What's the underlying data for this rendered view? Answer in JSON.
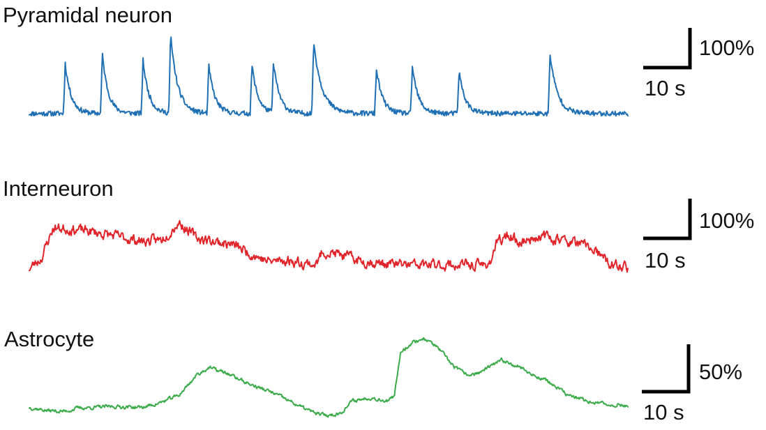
{
  "chart_data": [
    {
      "type": "line",
      "title": "Pyramidal neuron",
      "color": "#1f6fb5",
      "scale_bar": {
        "y_label": "100%",
        "x_label": "10 s",
        "y_value": 100,
        "x_value": 10
      },
      "x_range": [
        0,
        100
      ],
      "y_range": [
        -8,
        135
      ],
      "baseline": 0,
      "noise": 4,
      "seed": 11,
      "events": [
        {
          "t": 6.0,
          "amp": 80,
          "rise": 0.3,
          "decay": 1.0
        },
        {
          "t": 12.2,
          "amp": 95,
          "rise": 0.3,
          "decay": 1.0
        },
        {
          "t": 19.0,
          "amp": 85,
          "rise": 0.3,
          "decay": 1.0
        },
        {
          "t": 23.6,
          "amp": 125,
          "rise": 0.3,
          "decay": 1.2
        },
        {
          "t": 30.0,
          "amp": 75,
          "rise": 0.3,
          "decay": 1.0
        },
        {
          "t": 37.2,
          "amp": 78,
          "rise": 0.3,
          "decay": 1.0
        },
        {
          "t": 40.8,
          "amp": 80,
          "rise": 0.3,
          "decay": 1.0
        },
        {
          "t": 47.5,
          "amp": 115,
          "rise": 0.3,
          "decay": 1.4
        },
        {
          "t": 58.0,
          "amp": 72,
          "rise": 0.3,
          "decay": 1.0
        },
        {
          "t": 64.0,
          "amp": 75,
          "rise": 0.3,
          "decay": 1.0
        },
        {
          "t": 71.8,
          "amp": 68,
          "rise": 0.3,
          "decay": 1.0
        },
        {
          "t": 87.0,
          "amp": 95,
          "rise": 0.3,
          "decay": 1.2
        }
      ]
    },
    {
      "type": "line",
      "title": "Interneuron",
      "color": "#e0242a",
      "scale_bar": {
        "y_label": "100%",
        "x_label": "10 s",
        "y_value": 100,
        "x_value": 10
      },
      "x_range": [
        0,
        100
      ],
      "y_range": [
        -5,
        100
      ],
      "noise": 6,
      "seed": 23,
      "points": [
        [
          0,
          0
        ],
        [
          2,
          15
        ],
        [
          4,
          60
        ],
        [
          7,
          58
        ],
        [
          10,
          55
        ],
        [
          13,
          50
        ],
        [
          16,
          45
        ],
        [
          19,
          40
        ],
        [
          22,
          42
        ],
        [
          25,
          68
        ],
        [
          28,
          45
        ],
        [
          31,
          40
        ],
        [
          34,
          35
        ],
        [
          37,
          22
        ],
        [
          40,
          10
        ],
        [
          43,
          12
        ],
        [
          46,
          8
        ],
        [
          48,
          6
        ],
        [
          49,
          25
        ],
        [
          52,
          20
        ],
        [
          55,
          12
        ],
        [
          58,
          8
        ],
        [
          61,
          6
        ],
        [
          64,
          5
        ],
        [
          67,
          5
        ],
        [
          70,
          5
        ],
        [
          73,
          5
        ],
        [
          76,
          5
        ],
        [
          77,
          10
        ],
        [
          78,
          35
        ],
        [
          80,
          50
        ],
        [
          82,
          38
        ],
        [
          85,
          48
        ],
        [
          88,
          44
        ],
        [
          91,
          38
        ],
        [
          94,
          30
        ],
        [
          97,
          5
        ],
        [
          100,
          2
        ]
      ]
    },
    {
      "type": "line",
      "title": "Astrocyte",
      "color": "#3bab4a",
      "scale_bar": {
        "y_label": "50%",
        "x_label": "10 s",
        "y_value": 50,
        "x_value": 10
      },
      "x_range": [
        0,
        100
      ],
      "y_range": [
        -5,
        110
      ],
      "noise": 1.8,
      "seed": 37,
      "points": [
        [
          0,
          10
        ],
        [
          3,
          6
        ],
        [
          6,
          5
        ],
        [
          8,
          9
        ],
        [
          11,
          10
        ],
        [
          14,
          11
        ],
        [
          19,
          10
        ],
        [
          22,
          16
        ],
        [
          25,
          25
        ],
        [
          28,
          50
        ],
        [
          30,
          59
        ],
        [
          33,
          52
        ],
        [
          37,
          38
        ],
        [
          41,
          27
        ],
        [
          45,
          12
        ],
        [
          48,
          2
        ],
        [
          50,
          0
        ],
        [
          52,
          3
        ],
        [
          54,
          18
        ],
        [
          57,
          22
        ],
        [
          60,
          18
        ],
        [
          61,
          23
        ],
        [
          62,
          78
        ],
        [
          64,
          90
        ],
        [
          66,
          95
        ],
        [
          68,
          85
        ],
        [
          71,
          60
        ],
        [
          73,
          50
        ],
        [
          75,
          52
        ],
        [
          77,
          60
        ],
        [
          79,
          68
        ],
        [
          82,
          60
        ],
        [
          84,
          50
        ],
        [
          86,
          45
        ],
        [
          88,
          35
        ],
        [
          90,
          25
        ],
        [
          93,
          18
        ],
        [
          96,
          14
        ],
        [
          100,
          12
        ]
      ]
    }
  ]
}
